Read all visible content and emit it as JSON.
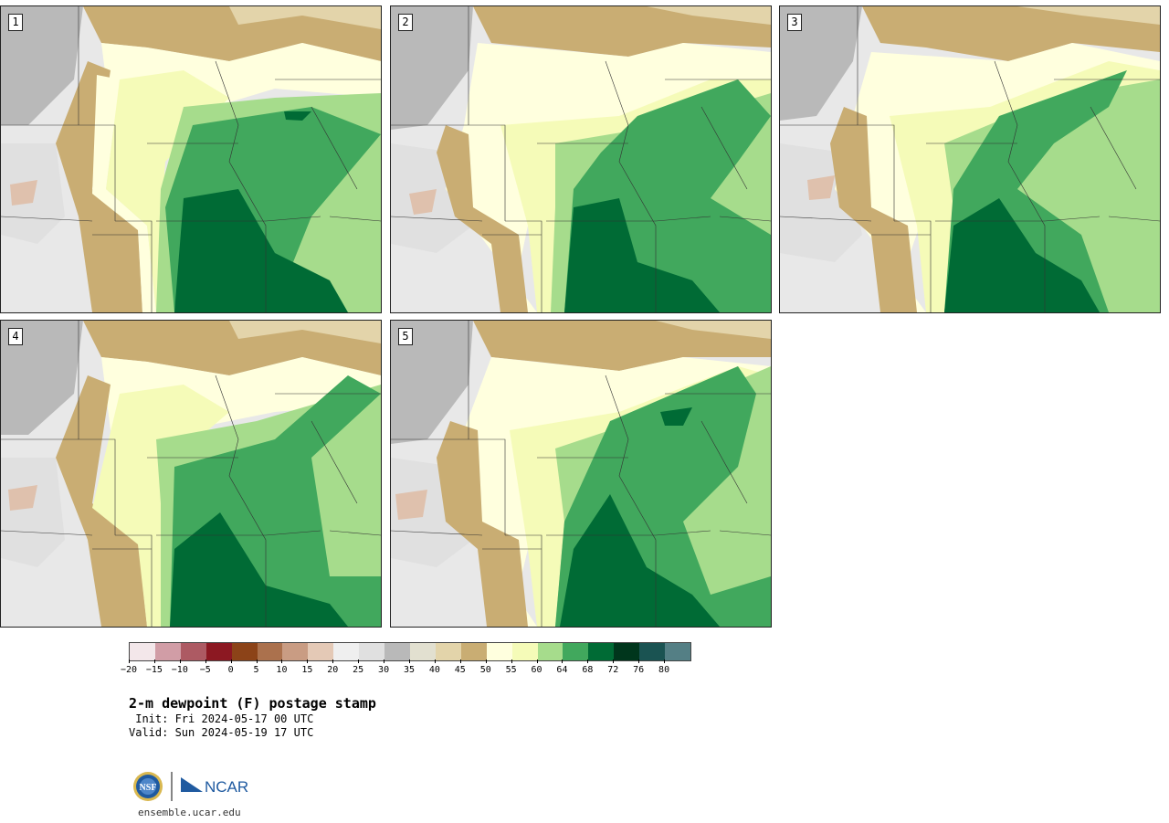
{
  "panels": [
    {
      "label": "1"
    },
    {
      "label": "2"
    },
    {
      "label": "3"
    },
    {
      "label": "4"
    },
    {
      "label": "5"
    }
  ],
  "colorbar": {
    "tick_labels": [
      "−20",
      "−15",
      "−10",
      "−5",
      "0",
      "5",
      "10",
      "15",
      "20",
      "25",
      "30",
      "35",
      "40",
      "45",
      "50",
      "55",
      "60",
      "64",
      "68",
      "72",
      "76",
      "80"
    ],
    "colors": [
      "#f3e7ea",
      "#d19da6",
      "#ad5a63",
      "#8c1822",
      "#8c4318",
      "#ab714d",
      "#c99c83",
      "#e4c9b6",
      "#efefef",
      "#e0e0e0",
      "#b9b9b9",
      "#e2e0d0",
      "#e3d4aa",
      "#c9ad73",
      "#ffffde",
      "#f5fbb8",
      "#a6dc8c",
      "#41a85d",
      "#006b35",
      "#00361c",
      "#1a5352",
      "#547f85"
    ]
  },
  "title": "2-m dewpoint (F) postage stamp",
  "init": " Init: Fri 2024-05-17 00 UTC",
  "valid": "Valid: Sun 2024-05-19 17 UTC",
  "logo": {
    "nsf": "NSF",
    "ncar": "NCAR"
  },
  "site": "ensemble.ucar.edu"
}
